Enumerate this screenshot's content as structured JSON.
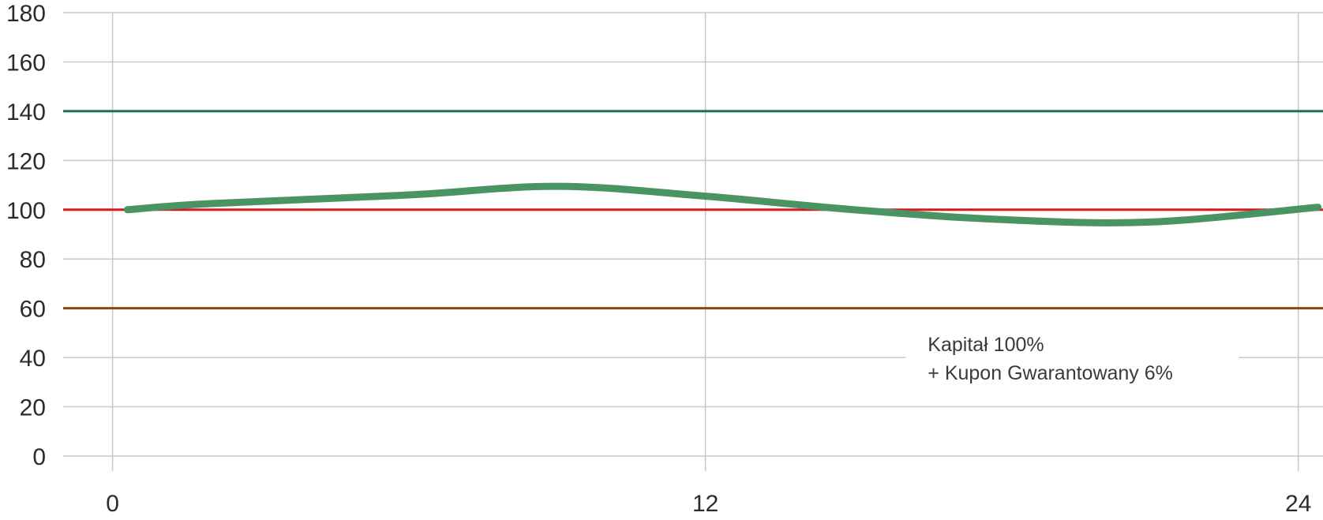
{
  "chart_data": {
    "type": "line",
    "title": "",
    "xlabel": "",
    "ylabel": "",
    "xlim": [
      -1,
      24.5
    ],
    "ylim": [
      0,
      180
    ],
    "xticks": [
      0,
      12,
      24
    ],
    "yticks": [
      0,
      20,
      40,
      60,
      80,
      100,
      120,
      140,
      160,
      180
    ],
    "grid": true,
    "legend": "none",
    "reference_lines": [
      {
        "y": 140,
        "color": "#1f6b5e"
      },
      {
        "y": 100,
        "color": "#d7191c"
      },
      {
        "y": 60,
        "color": "#8b4513"
      }
    ],
    "series": [
      {
        "color": "#4a9464",
        "x": [
          0.3,
          2,
          6,
          9,
          12,
          15,
          18,
          21,
          24.4
        ],
        "y": [
          100,
          102.5,
          106,
          109.5,
          105.5,
          100,
          96,
          95,
          101
        ]
      }
    ],
    "annotation": {
      "lines": [
        "Kapitał 100%",
        "+ Kupon Gwarantowany 6%"
      ],
      "x": 16.5,
      "y": 40
    }
  }
}
